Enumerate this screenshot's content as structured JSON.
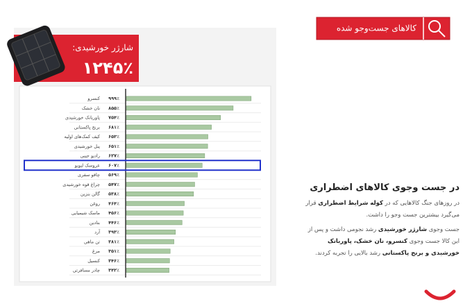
{
  "header": {
    "title": "کالاهای جست‌وجو شده"
  },
  "callout": {
    "label": "شارژر خورشیدی:",
    "value": 1245,
    "value_label": "۱۲۴۵٪"
  },
  "chart_data": {
    "type": "bar",
    "orientation": "horizontal",
    "color": "#a9c9a2",
    "categories": [
      "کنسرو",
      "نان خشک",
      "پاوربانک خورشیدی",
      "برنج پاکستانی",
      "کیف کمک‌های اولیه",
      "پنل خورشیدی",
      "رادیو جیبی",
      "عروسک لبوبو",
      "چاقو سفری",
      "چراغ قوه خورشیدی",
      "گالن بنزین",
      "روغن",
      "ماسک شیمیایی",
      "بتادین",
      "آرد",
      "تن ماهی",
      "مرغ",
      "کنسیل",
      "چادر مسافرتی"
    ],
    "values": [
      999,
      855,
      754,
      681,
      653,
      651,
      627,
      607,
      569,
      547,
      538,
      464,
      456,
      446,
      393,
      381,
      351,
      346,
      342
    ],
    "value_labels": [
      "۹۹۹٪",
      "۸۵۵٪",
      "۷۵۴٪",
      "۶۸۱٪",
      "۶۵۳٪",
      "۶۵۱٪",
      "۶۲۷٪",
      "۶۰۷٪",
      "۵۶۹٪",
      "۵۴۷٪",
      "۵۳۸٪",
      "۴۶۴٪",
      "۴۵۶٪",
      "۴۴۶٪",
      "۳۹۳٪",
      "۳۸۱٪",
      "۳۵۱٪",
      "۳۴۶٪",
      "۳۴۲٪"
    ]
  },
  "article": {
    "title": "در جست وجوی کالاهای اضطراری",
    "paragraphs": [
      [
        {
          "text": "در روزهای جنگ کالاهایی که در ",
          "bold": false
        },
        {
          "text": "کوله شرایط اضطراری",
          "bold": true
        },
        {
          "text": " قرار می‌گیرد بیشترین جست وجو را داشت.",
          "bold": false
        }
      ],
      [
        {
          "text": "جست وجوی ",
          "bold": false
        },
        {
          "text": "شارژر خورشیدی",
          "bold": true
        },
        {
          "text": " رشد نجومی داشت و پس از این کالا جست وجوی ",
          "bold": false
        },
        {
          "text": "کنسرو، نان خشک، پاوربانک خورشیدی و برنج پاکستانی",
          "bold": true
        },
        {
          "text": " رشد بالایی را تجربه کردند.",
          "bold": false
        }
      ]
    ]
  }
}
